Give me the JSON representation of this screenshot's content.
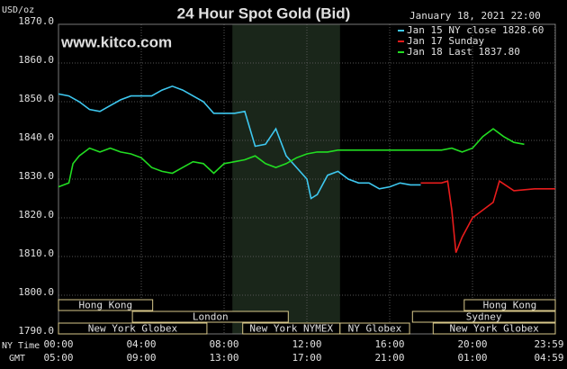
{
  "chart_data": {
    "type": "line",
    "title": "24 Hour Spot Gold (Bid)",
    "y_label": "USD/oz",
    "watermark": "www.kitco.com",
    "timestamp": "January 18, 2021 22:00",
    "x_label": "NY Time",
    "x2_label": "GMT",
    "xlim": [
      0,
      24
    ],
    "ylim": [
      1790,
      1870
    ],
    "grid": true,
    "highlight_range": [
      8.4,
      13.6
    ],
    "yticks": [
      {
        "value": 1790,
        "label": "1790.0"
      },
      {
        "value": 1800,
        "label": "1800.0"
      },
      {
        "value": 1810,
        "label": "1810.0"
      },
      {
        "value": 1820,
        "label": "1820.0"
      },
      {
        "value": 1830,
        "label": "1830.0"
      },
      {
        "value": 1840,
        "label": "1840.0"
      },
      {
        "value": 1850,
        "label": "1850.0"
      },
      {
        "value": 1860,
        "label": "1860.0"
      },
      {
        "value": 1870,
        "label": "1870.0"
      }
    ],
    "xticks": [
      {
        "value": 0,
        "label": "00:00"
      },
      {
        "value": 4,
        "label": "04:00"
      },
      {
        "value": 8,
        "label": "08:00"
      },
      {
        "value": 12,
        "label": "12:00"
      },
      {
        "value": 16,
        "label": "16:00"
      },
      {
        "value": 20,
        "label": "20:00"
      },
      {
        "value": 23.98,
        "label": "23:59"
      }
    ],
    "x2ticks": [
      {
        "value": 0,
        "label": "05:00"
      },
      {
        "value": 4,
        "label": "09:00"
      },
      {
        "value": 8,
        "label": "13:00"
      },
      {
        "value": 12,
        "label": "17:00"
      },
      {
        "value": 16,
        "label": "21:00"
      },
      {
        "value": 20,
        "label": "01:00"
      },
      {
        "value": 23.98,
        "label": "04:59"
      }
    ],
    "sessions": [
      [
        {
          "label": "Hong Kong",
          "start": 0,
          "end": 4.55
        },
        {
          "label": "Hong Kong",
          "start": 19.6,
          "end": 24
        }
      ],
      [
        {
          "label": "London",
          "start": 3.57,
          "end": 11.1
        },
        {
          "label": "Sydney",
          "start": 17.1,
          "end": 24
        }
      ],
      [
        {
          "label": "New York Globex",
          "start": 0,
          "end": 7.17
        },
        {
          "label": "New York NYMEX",
          "start": 8.9,
          "end": 13.6
        },
        {
          "label": "NY Globex",
          "start": 13.6,
          "end": 16.96
        },
        {
          "label": "New York Globex",
          "start": 18.1,
          "end": 24
        }
      ]
    ],
    "series": [
      {
        "name": "Jan 15 NY close 1828.60",
        "color": "#3ec8f0",
        "x": [
          0,
          0.5,
          1,
          1.5,
          2,
          2.5,
          3,
          3.5,
          4,
          4.5,
          5,
          5.5,
          6,
          6.5,
          7,
          7.5,
          8,
          8.5,
          9,
          9.5,
          10,
          10.5,
          11,
          11.5,
          12,
          12.2,
          12.5,
          13,
          13.5,
          14,
          14.5,
          15,
          15.5,
          16,
          16.5,
          17,
          17.5
        ],
        "values": [
          1852,
          1851.5,
          1850,
          1848,
          1847.5,
          1849,
          1850.5,
          1851.5,
          1851.5,
          1851.5,
          1853,
          1854,
          1853,
          1851.5,
          1850,
          1847,
          1847,
          1847,
          1847.5,
          1838.5,
          1839,
          1843,
          1836,
          1833,
          1830,
          1825,
          1826,
          1831,
          1832,
          1830,
          1829,
          1829,
          1827.5,
          1828,
          1829,
          1828.5,
          1828.5
        ]
      },
      {
        "name": "Jan 17 Sunday",
        "color": "#e81c1c",
        "x": [
          17.5,
          18,
          18.5,
          18.8,
          19,
          19.2,
          19.5,
          20,
          20.5,
          21,
          21.3,
          22,
          23,
          24
        ],
        "values": [
          1829,
          1829,
          1829,
          1829.5,
          1822,
          1811,
          1815,
          1820,
          1822,
          1824,
          1829.5,
          1827,
          1827.5,
          1827.5
        ]
      },
      {
        "name": "Jan 18 Last 1837.80",
        "color": "#22dd22",
        "x": [
          0,
          0.5,
          0.7,
          1,
          1.5,
          2,
          2.5,
          3,
          3.5,
          4,
          4.5,
          5,
          5.5,
          6,
          6.5,
          7,
          7.5,
          8,
          8.5,
          9,
          9.5,
          10,
          10.5,
          11,
          11.5,
          12,
          12.5,
          13,
          13.5,
          18.5,
          19,
          19.5,
          20,
          20.5,
          21,
          21.5,
          22,
          22.5
        ],
        "values": [
          1828,
          1829,
          1834,
          1836,
          1838,
          1837,
          1838,
          1837,
          1836.5,
          1835.5,
          1833,
          1832,
          1831.5,
          1833,
          1834.5,
          1834,
          1831.5,
          1834,
          1834.5,
          1835,
          1836,
          1834,
          1833,
          1834,
          1835.5,
          1836.5,
          1837,
          1837,
          1837.5,
          1837.5,
          1838,
          1837,
          1838,
          1841,
          1843,
          1841,
          1839.5,
          1839
        ]
      }
    ]
  }
}
